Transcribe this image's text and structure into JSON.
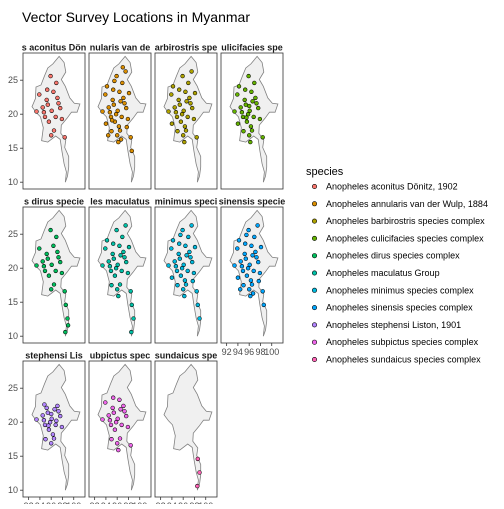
{
  "chart_data": {
    "type": "scatter",
    "title": "Vector Survey Locations in Myanmar",
    "xlabel": "",
    "ylabel": "",
    "xlim": [
      91,
      102
    ],
    "ylim": [
      9,
      29
    ],
    "x_ticks": [
      "92",
      "94",
      "96",
      "98",
      "100"
    ],
    "y_ticks": [
      "10",
      "15",
      "20",
      "25"
    ],
    "grid": false,
    "legend_position": "right",
    "legend_title": "species",
    "panel_strips": [
      "s aconitus Dön",
      "nularis van de",
      "arbirostris spe",
      "ulicifacies spe",
      "s dirus specie",
      "les maculatus",
      "minimus speci",
      "sinensis specie",
      "stephensi Lis",
      "ubpictus spec",
      "sundaicus spe"
    ],
    "series": [
      {
        "name": "Anopheles aconitus Dönitz, 1902",
        "color": "#F8766D",
        "points": [
          [
            94.5,
            21
          ],
          [
            95.2,
            22.1
          ],
          [
            96.1,
            20.5
          ],
          [
            96.8,
            19.6
          ],
          [
            95.6,
            18.9
          ],
          [
            97.1,
            22.4
          ],
          [
            96.4,
            23.3
          ],
          [
            94.9,
            19.6
          ],
          [
            93.9,
            22.9
          ],
          [
            97.6,
            20.9
          ],
          [
            96.9,
            24.6
          ],
          [
            95.4,
            21.4
          ],
          [
            96.0,
            16.9
          ],
          [
            96.5,
            17.6
          ],
          [
            97.9,
            19.3
          ],
          [
            93.4,
            20.4
          ],
          [
            95.9,
            25.6
          ],
          [
            97.3,
            21.6
          ],
          [
            98.4,
            16.6
          ],
          [
            94.7,
            20.3
          ],
          [
            95.3,
            23.6
          ]
        ]
      },
      {
        "name": "Anopheles annularis van der Wulp, 1884",
        "color": "#DB8E00",
        "points": [
          [
            94.5,
            21
          ],
          [
            95.2,
            22.1
          ],
          [
            96.1,
            20.5
          ],
          [
            96.8,
            19.6
          ],
          [
            95.6,
            18.9
          ],
          [
            97.1,
            22.4
          ],
          [
            96.4,
            23.3
          ],
          [
            94.9,
            19.6
          ],
          [
            93.9,
            22.9
          ],
          [
            97.6,
            20.9
          ],
          [
            96.9,
            24.6
          ],
          [
            95.4,
            21.4
          ],
          [
            96.0,
            16.9
          ],
          [
            96.5,
            17.6
          ],
          [
            97.9,
            19.3
          ],
          [
            93.4,
            20.4
          ],
          [
            95.9,
            25.6
          ],
          [
            97.3,
            21.6
          ],
          [
            98.4,
            16.6
          ],
          [
            94.7,
            20.3
          ],
          [
            95.3,
            23.6
          ],
          [
            96.2,
            15.9
          ],
          [
            97.5,
            26.3
          ],
          [
            94.2,
            24.1
          ],
          [
            95.8,
            20.0
          ],
          [
            96.6,
            21.9
          ],
          [
            95.0,
            17.5
          ],
          [
            98.1,
            23.1
          ],
          [
            94.0,
            18.6
          ],
          [
            96.3,
            18.2
          ],
          [
            95.5,
            24.9
          ],
          [
            97.7,
            18.1
          ],
          [
            96.7,
            16.3
          ],
          [
            98.6,
            14.6
          ],
          [
            94.4,
            16.9
          ],
          [
            97.0,
            26.9
          ],
          [
            95.1,
            19.1
          ]
        ]
      },
      {
        "name": "Anopheles barbirostris species complex",
        "color": "#AEA200",
        "points": [
          [
            94.5,
            21
          ],
          [
            95.2,
            22.1
          ],
          [
            96.1,
            20.5
          ],
          [
            96.8,
            19.6
          ],
          [
            95.6,
            18.9
          ],
          [
            97.1,
            22.4
          ],
          [
            96.4,
            23.3
          ],
          [
            94.9,
            19.6
          ],
          [
            93.9,
            22.9
          ],
          [
            97.6,
            20.9
          ],
          [
            96.9,
            24.6
          ],
          [
            95.4,
            21.4
          ],
          [
            96.0,
            16.9
          ],
          [
            96.5,
            17.6
          ],
          [
            97.9,
            19.3
          ],
          [
            93.4,
            20.4
          ],
          [
            95.9,
            25.6
          ],
          [
            97.3,
            21.6
          ],
          [
            98.4,
            16.6
          ],
          [
            94.7,
            20.3
          ],
          [
            95.3,
            23.6
          ],
          [
            96.2,
            15.9
          ],
          [
            97.5,
            26.3
          ],
          [
            94.2,
            24.1
          ],
          [
            95.8,
            20.0
          ],
          [
            96.6,
            21.9
          ],
          [
            95.0,
            17.5
          ],
          [
            98.1,
            23.1
          ],
          [
            94.0,
            18.6
          ],
          [
            96.3,
            18.2
          ]
        ]
      },
      {
        "name": "Anopheles culicifacies species complex",
        "color": "#64B200",
        "points": [
          [
            94.5,
            21
          ],
          [
            95.2,
            22.1
          ],
          [
            96.1,
            20.5
          ],
          [
            96.8,
            19.6
          ],
          [
            95.6,
            18.9
          ],
          [
            97.1,
            22.4
          ],
          [
            96.4,
            23.3
          ],
          [
            94.9,
            19.6
          ],
          [
            93.9,
            22.9
          ],
          [
            97.6,
            20.9
          ],
          [
            96.9,
            24.6
          ],
          [
            95.4,
            21.4
          ],
          [
            96.0,
            16.9
          ],
          [
            96.5,
            17.6
          ],
          [
            97.9,
            19.3
          ],
          [
            93.4,
            20.4
          ],
          [
            95.9,
            25.6
          ],
          [
            97.3,
            21.6
          ],
          [
            98.4,
            16.6
          ],
          [
            94.7,
            20.3
          ],
          [
            95.3,
            23.6
          ],
          [
            96.2,
            15.9
          ],
          [
            94.2,
            24.1
          ],
          [
            95.8,
            20.0
          ],
          [
            96.6,
            21.9
          ],
          [
            95.0,
            17.5
          ],
          [
            94.0,
            18.6
          ],
          [
            96.3,
            18.2
          ],
          [
            95.5,
            19.5
          ],
          [
            96.0,
            21.2
          ]
        ]
      },
      {
        "name": "Anopheles dirus species complex",
        "color": "#00BD5C",
        "points": [
          [
            94.5,
            21
          ],
          [
            95.2,
            22.1
          ],
          [
            96.1,
            20.5
          ],
          [
            96.8,
            19.6
          ],
          [
            95.6,
            18.9
          ],
          [
            97.1,
            22.4
          ],
          [
            96.4,
            23.3
          ],
          [
            94.9,
            19.6
          ],
          [
            93.9,
            22.9
          ],
          [
            97.6,
            20.9
          ],
          [
            96.9,
            24.6
          ],
          [
            95.4,
            21.4
          ],
          [
            96.0,
            16.9
          ],
          [
            96.5,
            17.6
          ],
          [
            97.9,
            19.3
          ],
          [
            93.4,
            20.4
          ],
          [
            95.9,
            25.6
          ],
          [
            97.3,
            21.6
          ],
          [
            98.4,
            16.6
          ],
          [
            94.7,
            20.3
          ],
          [
            98.6,
            14.6
          ],
          [
            98.9,
            12.6
          ],
          [
            98.5,
            10.6
          ],
          [
            99.0,
            11.6
          ]
        ]
      },
      {
        "name": "Anopheles maculatus Group",
        "color": "#00C1A7",
        "points": [
          [
            94.5,
            21
          ],
          [
            95.2,
            22.1
          ],
          [
            96.1,
            20.5
          ],
          [
            96.8,
            19.6
          ],
          [
            95.6,
            18.9
          ],
          [
            97.1,
            22.4
          ],
          [
            96.4,
            23.3
          ],
          [
            94.9,
            19.6
          ],
          [
            93.9,
            22.9
          ],
          [
            97.6,
            20.9
          ],
          [
            96.9,
            24.6
          ],
          [
            95.4,
            21.4
          ],
          [
            96.0,
            16.9
          ],
          [
            96.5,
            17.6
          ],
          [
            97.9,
            19.3
          ],
          [
            93.4,
            20.4
          ],
          [
            95.9,
            25.6
          ],
          [
            97.3,
            21.6
          ],
          [
            98.4,
            16.6
          ],
          [
            94.7,
            20.3
          ],
          [
            95.3,
            23.6
          ],
          [
            96.2,
            15.9
          ],
          [
            97.5,
            26.3
          ],
          [
            94.2,
            24.1
          ],
          [
            95.8,
            20.0
          ],
          [
            96.6,
            21.9
          ],
          [
            95.0,
            17.5
          ],
          [
            98.1,
            23.1
          ],
          [
            98.6,
            14.6
          ],
          [
            98.9,
            12.6
          ],
          [
            98.5,
            10.6
          ]
        ]
      },
      {
        "name": "Anopheles minimus species complex",
        "color": "#00BADE",
        "points": [
          [
            94.5,
            21
          ],
          [
            95.2,
            22.1
          ],
          [
            96.1,
            20.5
          ],
          [
            96.8,
            19.6
          ],
          [
            95.6,
            18.9
          ],
          [
            97.1,
            22.4
          ],
          [
            96.4,
            23.3
          ],
          [
            94.9,
            19.6
          ],
          [
            93.9,
            22.9
          ],
          [
            97.6,
            20.9
          ],
          [
            96.9,
            24.6
          ],
          [
            95.4,
            21.4
          ],
          [
            96.0,
            16.9
          ],
          [
            96.5,
            17.6
          ],
          [
            97.9,
            19.3
          ],
          [
            93.4,
            20.4
          ],
          [
            95.9,
            25.6
          ],
          [
            97.3,
            21.6
          ],
          [
            98.4,
            16.6
          ],
          [
            94.7,
            20.3
          ],
          [
            95.3,
            23.6
          ],
          [
            96.2,
            15.9
          ],
          [
            97.5,
            26.3
          ],
          [
            94.2,
            24.1
          ],
          [
            95.8,
            20.0
          ],
          [
            96.6,
            21.9
          ],
          [
            95.0,
            17.5
          ],
          [
            98.1,
            23.1
          ],
          [
            94.0,
            18.6
          ],
          [
            96.3,
            18.2
          ],
          [
            95.5,
            24.9
          ],
          [
            97.7,
            18.1
          ],
          [
            98.6,
            14.6
          ],
          [
            98.9,
            12.6
          ]
        ]
      },
      {
        "name": "Anopheles sinensis species complex",
        "color": "#00A6FF",
        "points": [
          [
            94.5,
            21
          ],
          [
            95.2,
            22.1
          ],
          [
            96.1,
            20.5
          ],
          [
            96.8,
            19.6
          ],
          [
            95.6,
            18.9
          ],
          [
            97.1,
            22.4
          ],
          [
            96.4,
            23.3
          ],
          [
            94.9,
            19.6
          ],
          [
            93.9,
            22.9
          ],
          [
            97.6,
            20.9
          ],
          [
            96.9,
            24.6
          ],
          [
            95.4,
            21.4
          ],
          [
            96.0,
            16.9
          ],
          [
            96.5,
            17.6
          ],
          [
            97.9,
            19.3
          ],
          [
            93.4,
            20.4
          ],
          [
            95.9,
            25.6
          ],
          [
            97.3,
            21.6
          ],
          [
            98.4,
            16.6
          ],
          [
            94.7,
            20.3
          ],
          [
            95.3,
            23.6
          ],
          [
            96.2,
            15.9
          ],
          [
            97.5,
            26.3
          ],
          [
            94.2,
            24.1
          ],
          [
            95.8,
            20.0
          ],
          [
            96.6,
            21.9
          ],
          [
            95.0,
            17.5
          ],
          [
            98.1,
            23.1
          ],
          [
            94.0,
            18.6
          ],
          [
            96.3,
            18.2
          ],
          [
            95.5,
            24.9
          ],
          [
            97.7,
            18.1
          ],
          [
            96.7,
            16.3
          ],
          [
            98.6,
            14.6
          ],
          [
            94.4,
            16.9
          ]
        ]
      },
      {
        "name": "Anopheles stephensi Liston, 1901",
        "color": "#B385FF",
        "points": [
          [
            94.5,
            21
          ],
          [
            95.2,
            22.1
          ],
          [
            96.1,
            20.5
          ],
          [
            96.8,
            19.6
          ],
          [
            95.6,
            18.9
          ],
          [
            97.1,
            22.4
          ],
          [
            94.9,
            19.6
          ],
          [
            97.6,
            20.9
          ],
          [
            95.4,
            21.4
          ],
          [
            96.0,
            16.9
          ],
          [
            96.5,
            17.6
          ],
          [
            97.9,
            19.3
          ],
          [
            93.4,
            20.4
          ],
          [
            97.3,
            21.6
          ],
          [
            94.7,
            20.3
          ],
          [
            95.8,
            20.0
          ],
          [
            96.6,
            21.9
          ],
          [
            95.0,
            17.5
          ],
          [
            96.3,
            18.2
          ],
          [
            95.5,
            19.5
          ],
          [
            96.0,
            21.2
          ],
          [
            94.8,
            22.6
          ],
          [
            96.9,
            20.2
          ]
        ]
      },
      {
        "name": "Anopheles subpictus species complex",
        "color": "#EF67EB",
        "points": [
          [
            94.5,
            21
          ],
          [
            95.2,
            22.1
          ],
          [
            96.1,
            20.5
          ],
          [
            96.8,
            19.6
          ],
          [
            95.6,
            18.9
          ],
          [
            97.1,
            22.4
          ],
          [
            96.4,
            23.3
          ],
          [
            94.9,
            19.6
          ],
          [
            93.9,
            22.9
          ],
          [
            97.6,
            20.9
          ],
          [
            95.4,
            21.4
          ],
          [
            96.0,
            16.9
          ],
          [
            96.5,
            17.6
          ],
          [
            97.9,
            19.3
          ],
          [
            93.4,
            20.4
          ],
          [
            97.3,
            21.6
          ],
          [
            98.4,
            16.6
          ],
          [
            94.7,
            20.3
          ],
          [
            95.3,
            23.6
          ],
          [
            96.2,
            15.9
          ],
          [
            95.8,
            20.0
          ],
          [
            96.6,
            21.9
          ],
          [
            95.0,
            17.5
          ]
        ]
      },
      {
        "name": "Anopheles sundaicus species complex",
        "color": "#FF63B6",
        "points": [
          [
            98.6,
            14.6
          ],
          [
            98.9,
            12.6
          ],
          [
            98.5,
            10.6
          ]
        ]
      }
    ]
  }
}
